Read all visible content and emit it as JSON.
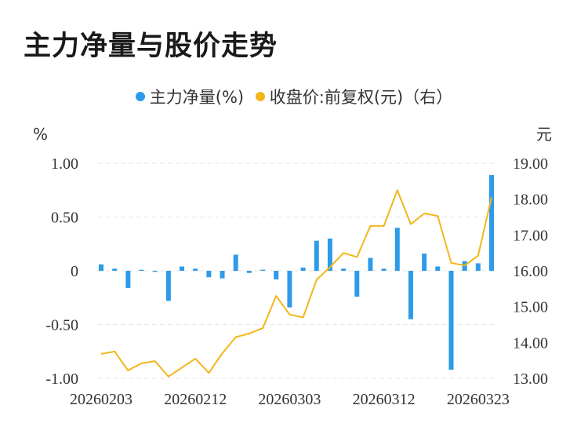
{
  "title": "主力净量与股价走势",
  "legend": [
    {
      "label": "主力净量(%)",
      "color": "#2e9be8"
    },
    {
      "label": "收盘价:前复权(元)（右）",
      "color": "#f2b619"
    }
  ],
  "chart_data": {
    "type": "bar+line",
    "title": "主力净量与股价走势",
    "left_axis": {
      "unit": "%",
      "range": [
        -1.0,
        1.0
      ],
      "ticks": [
        "1.00",
        "0.50",
        "0",
        "-0.50",
        "-1.00"
      ]
    },
    "right_axis": {
      "unit": "元",
      "range": [
        13.0,
        19.0
      ],
      "ticks": [
        "19.00",
        "18.00",
        "17.00",
        "16.00",
        "15.00",
        "14.00",
        "13.00"
      ]
    },
    "x_tick_labels": [
      "20260203",
      "20260212",
      "20260303",
      "20260312",
      "20260323"
    ],
    "series": [
      {
        "name": "主力净量(%)",
        "type": "bar",
        "axis": "left",
        "color": "#2e9be8",
        "values": [
          0.06,
          0.02,
          -0.16,
          0.01,
          -0.01,
          -0.28,
          0.04,
          0.02,
          -0.06,
          -0.07,
          0.15,
          -0.02,
          0.01,
          -0.08,
          -0.34,
          0.03,
          0.28,
          0.3,
          0.02,
          -0.24,
          0.12,
          0.02,
          0.4,
          -0.45,
          0.16,
          0.04,
          -0.92,
          0.09,
          0.07,
          0.89
        ]
      },
      {
        "name": "收盘价:前复权(元)（右）",
        "type": "line",
        "axis": "right",
        "color": "#f2b619",
        "values": [
          13.68,
          13.75,
          13.22,
          13.42,
          13.48,
          13.05,
          13.3,
          13.55,
          13.15,
          13.7,
          14.15,
          14.25,
          14.4,
          15.3,
          14.78,
          14.7,
          15.75,
          16.1,
          16.5,
          16.38,
          17.25,
          17.25,
          18.25,
          17.3,
          17.6,
          17.53,
          16.22,
          16.15,
          16.42,
          18.05
        ]
      }
    ],
    "grid": true
  }
}
